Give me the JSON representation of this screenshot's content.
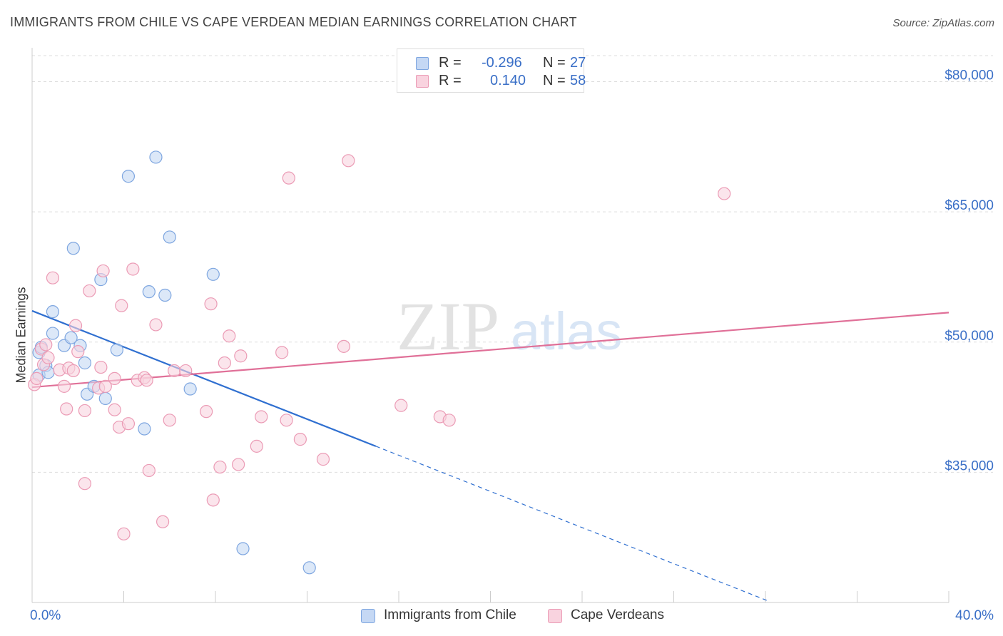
{
  "title": "IMMIGRANTS FROM CHILE VS CAPE VERDEAN MEDIAN EARNINGS CORRELATION CHART",
  "source": "Source: ZipAtlas.com",
  "watermark": {
    "zip": "ZIP",
    "atlas": "atlas"
  },
  "legend": {
    "rows": [
      {
        "r_label": "R =",
        "r_value": "-0.296",
        "n_label": "N =",
        "n_value": "27"
      },
      {
        "r_label": "R =",
        "r_value": "0.140",
        "n_label": "N =",
        "n_value": "58"
      }
    ]
  },
  "bottom_legend": [
    "Immigrants from Chile",
    "Cape Verdeans"
  ],
  "colors": {
    "chile_fill": "#c5d8f4",
    "chile_stroke": "#7ea6e0",
    "chile_line": "#2f6fd0",
    "cape_fill": "#f9d3df",
    "cape_stroke": "#eb9bb5",
    "cape_line": "#e07098",
    "axis_text": "#3a6fc7",
    "grid": "#dddddd"
  },
  "chart_data": {
    "type": "scatter",
    "title": "IMMIGRANTS FROM CHILE VS CAPE VERDEAN MEDIAN EARNINGS CORRELATION CHART",
    "xlabel": "",
    "ylabel": "Median Earnings",
    "xlim": [
      0,
      40
    ],
    "ylim": [
      20000,
      83000
    ],
    "x_tick_labels": [
      "0.0%",
      "40.0%"
    ],
    "y_ticks": [
      {
        "value": 35000,
        "label": "$35,000"
      },
      {
        "value": 50000,
        "label": "$50,000"
      },
      {
        "value": 65000,
        "label": "$65,000"
      },
      {
        "value": 80000,
        "label": "$80,000"
      }
    ],
    "grid": true,
    "series": [
      {
        "name": "Immigrants from Chile",
        "r": -0.296,
        "n": 27,
        "points": [
          [
            0.3,
            48800
          ],
          [
            0.3,
            46200
          ],
          [
            0.6,
            47300
          ],
          [
            0.7,
            46500
          ],
          [
            0.9,
            53500
          ],
          [
            0.9,
            51000
          ],
          [
            1.4,
            49600
          ],
          [
            1.7,
            50500
          ],
          [
            1.8,
            60800
          ],
          [
            2.1,
            49600
          ],
          [
            2.3,
            47600
          ],
          [
            2.4,
            44000
          ],
          [
            2.7,
            44900
          ],
          [
            3.0,
            57200
          ],
          [
            3.2,
            43500
          ],
          [
            3.7,
            49100
          ],
          [
            4.2,
            69100
          ],
          [
            4.9,
            40000
          ],
          [
            5.1,
            55800
          ],
          [
            5.4,
            71300
          ],
          [
            5.8,
            55400
          ],
          [
            6.0,
            62100
          ],
          [
            6.9,
            44600
          ],
          [
            7.9,
            57800
          ],
          [
            9.2,
            26200
          ],
          [
            12.1,
            24000
          ],
          [
            0.4,
            49400
          ]
        ],
        "trend": {
          "x0": 0,
          "y0": 53600,
          "x1": 15,
          "y1": 38000,
          "dash_to_x": 32.1,
          "dash_to_y": 20200
        }
      },
      {
        "name": "Cape Verdeans",
        "r": 0.14,
        "n": 58,
        "points": [
          [
            0.1,
            45100
          ],
          [
            0.2,
            45800
          ],
          [
            0.4,
            49200
          ],
          [
            0.5,
            47400
          ],
          [
            0.6,
            49700
          ],
          [
            0.7,
            48200
          ],
          [
            0.9,
            57400
          ],
          [
            1.2,
            46800
          ],
          [
            1.4,
            44900
          ],
          [
            1.5,
            42300
          ],
          [
            1.6,
            47000
          ],
          [
            1.8,
            46700
          ],
          [
            1.9,
            51900
          ],
          [
            2.0,
            48900
          ],
          [
            2.3,
            33700
          ],
          [
            2.3,
            42100
          ],
          [
            2.5,
            55900
          ],
          [
            2.9,
            44700
          ],
          [
            3.0,
            47100
          ],
          [
            3.1,
            58200
          ],
          [
            3.2,
            44900
          ],
          [
            3.6,
            45800
          ],
          [
            3.6,
            42200
          ],
          [
            3.8,
            40200
          ],
          [
            3.9,
            54200
          ],
          [
            4.0,
            27900
          ],
          [
            4.2,
            40600
          ],
          [
            4.4,
            58400
          ],
          [
            4.6,
            45600
          ],
          [
            4.9,
            45900
          ],
          [
            5.0,
            45600
          ],
          [
            5.1,
            35200
          ],
          [
            5.4,
            52000
          ],
          [
            5.7,
            29300
          ],
          [
            6.0,
            41000
          ],
          [
            6.2,
            46700
          ],
          [
            6.7,
            46700
          ],
          [
            7.6,
            42000
          ],
          [
            7.8,
            54400
          ],
          [
            7.9,
            31800
          ],
          [
            8.2,
            35600
          ],
          [
            8.4,
            47600
          ],
          [
            8.6,
            50700
          ],
          [
            9.0,
            35900
          ],
          [
            9.1,
            48400
          ],
          [
            9.8,
            38000
          ],
          [
            10.0,
            41400
          ],
          [
            10.9,
            48800
          ],
          [
            11.1,
            41000
          ],
          [
            11.2,
            68900
          ],
          [
            11.7,
            38800
          ],
          [
            12.7,
            36500
          ],
          [
            13.6,
            49500
          ],
          [
            13.8,
            70900
          ],
          [
            16.1,
            42700
          ],
          [
            17.8,
            41400
          ],
          [
            18.2,
            41000
          ],
          [
            30.2,
            67100
          ]
        ],
        "trend": {
          "x0": 0,
          "y0": 44800,
          "x1": 40,
          "y1": 53400
        }
      }
    ]
  }
}
